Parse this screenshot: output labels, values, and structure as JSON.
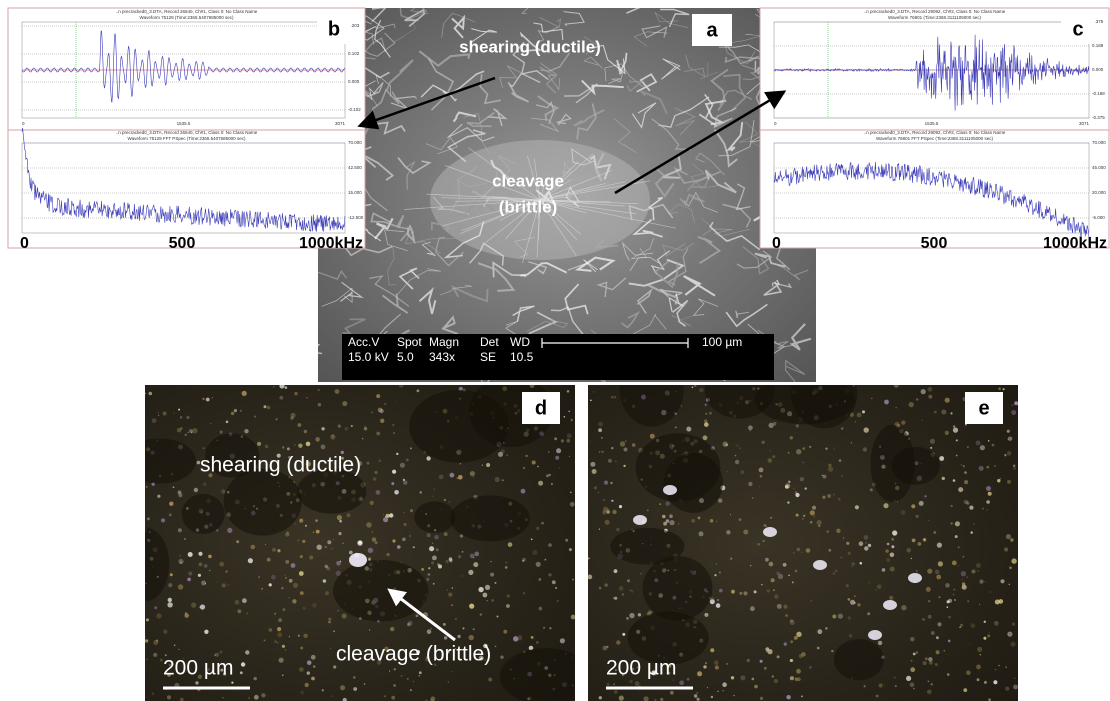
{
  "panels": {
    "a": {
      "label": "a",
      "annotations": [
        "shearing (ductile)",
        "cleavage",
        "(brittle)"
      ],
      "databar": {
        "row1": [
          "Acc.V",
          "Spot",
          "Magn",
          "Det",
          "WD"
        ],
        "row2": [
          "15.0 kV",
          "5.0",
          "343x",
          "SE",
          "10.5"
        ],
        "scale": "100 µm"
      }
    },
    "b": {
      "label": "b",
      "waveform": {
        "header": "..n precracked0_3.DTA, Record 26540, Ch#1, Class 0: No Class Name",
        "subtitle": "Waveform  75129  (Time:2365.5407685000 sec)",
        "yticks": [
          "0.203",
          "0.102",
          "0.000",
          "-0.102"
        ],
        "xticks": [
          "0",
          "1535.5",
          "3071"
        ]
      },
      "spectrum": {
        "header": "..n precracked0_3.DTA, Record 26540, Ch#1, Class 0: No Class Name",
        "subtitle": "Waveform  75129 FFT PSpec  (Time:2365.5407685000 sec)",
        "yticks": [
          "70.000",
          "42.500",
          "15.000",
          "-12.500"
        ]
      },
      "xaxis": [
        "0",
        "500",
        "1000kHz"
      ]
    },
    "c": {
      "label": "c",
      "waveform": {
        "header": "..n precracked0_3.DTA, Record 29092, Ch#2, Class 0: No Class Name",
        "subtitle": "Waveform  76801  (Time:2368.3111105000 sec)",
        "yticks": [
          "0.375",
          "0.188",
          "0.000",
          "-0.188",
          "-0.375"
        ],
        "xticks": [
          "0",
          "1535.5",
          "3071"
        ]
      },
      "spectrum": {
        "header": "..n precracked0_3.DTA, Record 29092, Ch#2, Class 0: No Class Name",
        "subtitle": "Waveform  76801 FFT PSpec  (Time:2368.3111105000 sec)",
        "yticks": [
          "70.000",
          "45.000",
          "20.000",
          "-5.000"
        ]
      },
      "xaxis": [
        "0",
        "500",
        "1000kHz"
      ]
    },
    "d": {
      "label": "d",
      "annotations": [
        "shearing (ductile)",
        "cleavage (brittle)"
      ],
      "scale": "200 µm"
    },
    "e": {
      "label": "e",
      "scale": "200 µm"
    }
  }
}
